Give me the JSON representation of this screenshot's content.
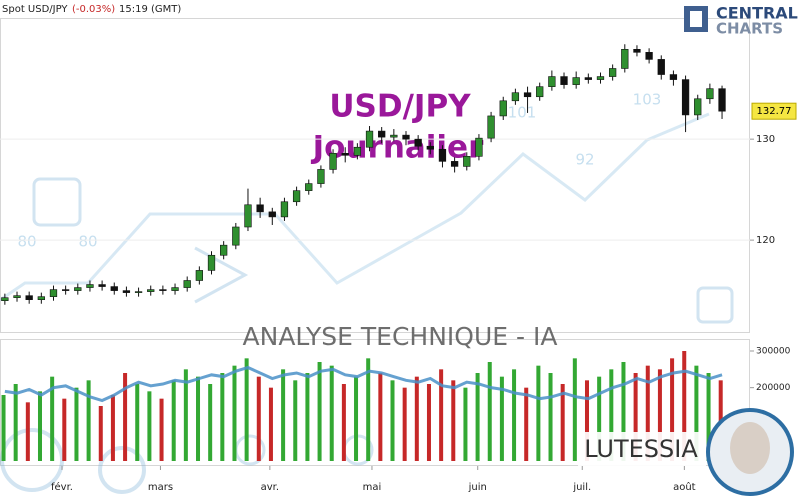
{
  "header": {
    "instrument": "Spot USD/JPY",
    "change": "(-0.03%)",
    "time": "15:19 (GMT)",
    "logo_top": "CENTRAL",
    "logo_bottom": "CHARTS"
  },
  "chart_data": {
    "type": "candlestick",
    "title": "USD/JPY",
    "subtitle": "Journalier",
    "watermark": "ANALYSE TECHNIQUE - IA",
    "brand": "LUTESSIA",
    "overlay_labels": [
      "80",
      "80",
      "92",
      "101",
      "103"
    ],
    "xlim": [
      -0.4,
      61.3
    ],
    "xticks": [
      {
        "value": 4.7,
        "label": "févr."
      },
      {
        "value": 12.8,
        "label": "mars"
      },
      {
        "value": 21.8,
        "label": "avr."
      },
      {
        "value": 30.2,
        "label": "mai"
      },
      {
        "value": 38.9,
        "label": "juin"
      },
      {
        "value": 47.5,
        "label": "juil."
      },
      {
        "value": 55.9,
        "label": "août"
      }
    ],
    "ylim": [
      110.9,
      142
    ],
    "yticks": [
      120,
      130
    ],
    "grid": true,
    "up_color": "#2f8f2f",
    "down_color": "#111111",
    "candles": {
      "open": [
        114.0,
        114.3,
        114.5,
        114.1,
        114.4,
        115.1,
        115.0,
        115.3,
        115.6,
        115.4,
        115.0,
        114.8,
        114.9,
        115.1,
        115.0,
        115.3,
        116.0,
        117.0,
        118.5,
        119.5,
        121.3,
        123.5,
        122.8,
        122.3,
        123.8,
        124.9,
        125.6,
        127.0,
        128.6,
        128.4,
        129.2,
        130.8,
        130.2,
        130.4,
        130.0,
        129.3,
        129.0,
        127.8,
        127.3,
        128.3,
        130.1,
        132.3,
        133.8,
        134.6,
        134.2,
        135.2,
        136.2,
        135.4,
        136.1,
        135.9,
        136.2,
        137.0,
        138.9,
        138.6,
        137.9,
        136.4,
        135.9,
        132.4,
        134.0,
        135.0
      ],
      "high": [
        114.7,
        114.9,
        114.9,
        114.8,
        115.5,
        115.5,
        115.7,
        116.0,
        116.0,
        115.8,
        115.4,
        115.3,
        115.5,
        115.5,
        115.7,
        116.4,
        117.4,
        118.9,
        119.9,
        121.7,
        125.1,
        124.2,
        123.2,
        124.2,
        125.3,
        126.0,
        127.4,
        129.0,
        129.2,
        129.6,
        131.3,
        131.2,
        131.0,
        130.8,
        130.4,
        129.7,
        129.4,
        128.2,
        128.7,
        130.5,
        132.7,
        134.2,
        135.0,
        135.2,
        135.6,
        136.8,
        136.6,
        136.7,
        136.5,
        136.6,
        137.4,
        139.4,
        139.3,
        139.0,
        138.3,
        136.8,
        136.3,
        134.4,
        135.5,
        135.3
      ],
      "low": [
        113.6,
        113.9,
        113.7,
        113.7,
        114.0,
        114.6,
        114.6,
        114.9,
        115.0,
        114.6,
        114.4,
        114.4,
        114.5,
        114.6,
        114.6,
        114.9,
        115.6,
        116.6,
        118.1,
        119.1,
        120.9,
        122.2,
        121.5,
        121.9,
        123.4,
        124.5,
        125.2,
        126.6,
        127.7,
        128.0,
        128.8,
        129.6,
        129.8,
        129.4,
        128.9,
        128.5,
        127.2,
        126.7,
        126.9,
        127.9,
        129.7,
        131.9,
        133.4,
        132.6,
        133.8,
        134.8,
        135.0,
        135.0,
        135.5,
        135.5,
        135.8,
        136.6,
        138.2,
        137.5,
        135.9,
        135.3,
        130.7,
        131.9,
        133.5,
        132.0
      ],
      "close": [
        114.3,
        114.5,
        114.1,
        114.4,
        115.1,
        115.0,
        115.3,
        115.6,
        115.4,
        115.0,
        114.8,
        114.9,
        115.1,
        115.0,
        115.3,
        116.0,
        117.0,
        118.5,
        119.5,
        121.3,
        123.5,
        122.8,
        122.3,
        123.8,
        124.9,
        125.6,
        127.0,
        128.6,
        128.4,
        129.2,
        130.8,
        130.2,
        130.4,
        130.0,
        129.3,
        129.0,
        127.8,
        127.3,
        128.3,
        130.1,
        132.3,
        133.8,
        134.6,
        134.2,
        135.2,
        136.2,
        135.4,
        136.1,
        135.9,
        136.2,
        137.0,
        138.9,
        138.6,
        137.9,
        136.4,
        135.9,
        132.4,
        134.0,
        135.0,
        132.77
      ]
    },
    "volume": {
      "ylim": [
        0,
        330000
      ],
      "yticks": [
        300000,
        200000
      ],
      "up_color": "#33a833",
      "down_color": "#c62828",
      "line_color": "#4a90c8",
      "values": [
        180000,
        210000,
        160000,
        190000,
        230000,
        170000,
        200000,
        220000,
        150000,
        180000,
        240000,
        210000,
        190000,
        170000,
        220000,
        250000,
        230000,
        210000,
        240000,
        260000,
        280000,
        230000,
        200000,
        250000,
        220000,
        240000,
        270000,
        260000,
        210000,
        230000,
        280000,
        240000,
        220000,
        200000,
        230000,
        210000,
        250000,
        220000,
        200000,
        240000,
        270000,
        230000,
        250000,
        200000,
        260000,
        240000,
        210000,
        280000,
        220000,
        230000,
        250000,
        270000,
        240000,
        260000,
        250000,
        280000,
        300000,
        260000,
        240000,
        220000
      ],
      "line": [
        190000,
        185000,
        195000,
        180000,
        200000,
        205000,
        190000,
        175000,
        165000,
        180000,
        200000,
        215000,
        205000,
        210000,
        220000,
        215000,
        225000,
        235000,
        230000,
        245000,
        255000,
        240000,
        225000,
        235000,
        240000,
        230000,
        245000,
        250000,
        235000,
        230000,
        245000,
        240000,
        230000,
        220000,
        215000,
        225000,
        205000,
        200000,
        215000,
        210000,
        200000,
        195000,
        185000,
        180000,
        170000,
        175000,
        185000,
        175000,
        170000,
        185000,
        200000,
        210000,
        225000,
        215000,
        230000,
        240000,
        245000,
        235000,
        225000,
        235000
      ]
    }
  }
}
